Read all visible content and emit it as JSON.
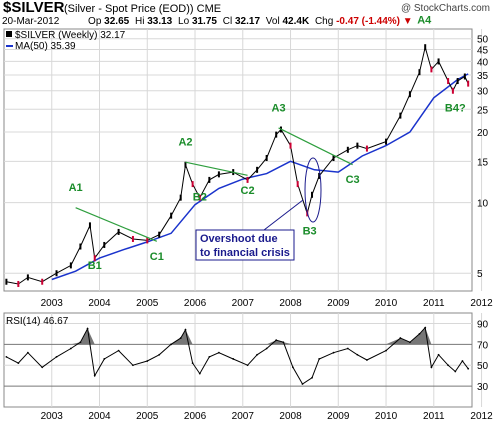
{
  "header": {
    "symbol": "$SILVER",
    "description": "(Silver - Spot Price (EOD))",
    "exchange": "CME",
    "credit": "@ StockCharts.com",
    "date": "20-Mar-2012",
    "open_label": "Op",
    "open_value": "32.65",
    "high_label": "Hi",
    "high_value": "33.13",
    "low_label": "Lo",
    "low_value": "31.75",
    "close_label": "Cl",
    "close_value": "32.17",
    "volume_label": "Vol",
    "volume_value": "42.4K",
    "change_label": "Chg",
    "change_value": "-0.47 (-1.44%)",
    "change_arrow": "▼"
  },
  "legend": {
    "price": "$SILVER (Weekly) 32.17",
    "ma": "MA(50) 35.39",
    "rsi": "RSI(14) 46.67"
  },
  "colors": {
    "price_bar": "#000000",
    "down_bar": "#cc0033",
    "ma_line": "#1a33cc",
    "trend_line": "#2e9e3e",
    "label_text": "#1a8c2a",
    "callout_text": "#1a1a8c",
    "rsi_fill": "#777777"
  },
  "annotations": [
    {
      "label": "A1",
      "year": 2004.0,
      "price": 11.2
    },
    {
      "label": "B1",
      "year": 2004.4,
      "price": 5.2
    },
    {
      "label": "C1",
      "year": 2005.7,
      "price": 5.7
    },
    {
      "label": "A2",
      "year": 2006.3,
      "price": 17.5
    },
    {
      "label": "B2",
      "year": 2006.6,
      "price": 10.2
    },
    {
      "label": "C2",
      "year": 2007.6,
      "price": 10.9
    },
    {
      "label": "A3",
      "year": 2008.25,
      "price": 24.5
    },
    {
      "label": "B3",
      "year": 2008.9,
      "price": 7.3
    },
    {
      "label": "C3",
      "year": 2009.8,
      "price": 12.1
    },
    {
      "label": "A4",
      "year": 2011.3,
      "price": 58.0
    },
    {
      "label": "B4?",
      "year": 2011.95,
      "price": 24.5
    }
  ],
  "callout": {
    "line1": "Overshoot due",
    "line2": "to financial crisis"
  },
  "chart_data": [
    {
      "type": "line",
      "title": "$SILVER (Weekly)",
      "y_scale": "log",
      "ylim": [
        4.2,
        55
      ],
      "xlim": [
        2002.5,
        2012.3
      ],
      "x_ticks": [
        "2003",
        "2004",
        "2005",
        "2006",
        "2007",
        "2008",
        "2009",
        "2010",
        "2011",
        "2012"
      ],
      "y_ticks": [
        5,
        10,
        15,
        20,
        25,
        30,
        35,
        40,
        45,
        50
      ],
      "grid": true,
      "series": [
        {
          "name": "$SILVER (Weekly)",
          "x": [
            2002.55,
            2002.8,
            2003.0,
            2003.3,
            2003.6,
            2003.9,
            2004.1,
            2004.3,
            2004.4,
            2004.6,
            2004.9,
            2005.2,
            2005.5,
            2005.75,
            2006.0,
            2006.2,
            2006.3,
            2006.45,
            2006.6,
            2006.8,
            2007.0,
            2007.3,
            2007.6,
            2007.8,
            2008.0,
            2008.2,
            2008.3,
            2008.5,
            2008.65,
            2008.85,
            2008.95,
            2009.1,
            2009.4,
            2009.7,
            2009.9,
            2010.1,
            2010.5,
            2010.8,
            2011.0,
            2011.2,
            2011.32,
            2011.45,
            2011.6,
            2011.8,
            2011.9,
            2012.0,
            2012.15,
            2012.22
          ],
          "values": [
            4.6,
            4.5,
            4.8,
            4.6,
            5.0,
            5.4,
            6.5,
            8.0,
            5.8,
            6.6,
            7.5,
            7.0,
            6.9,
            7.3,
            8.8,
            10.5,
            14.5,
            12.0,
            10.5,
            12.5,
            13.2,
            13.5,
            12.5,
            13.8,
            15.5,
            19.5,
            20.5,
            17.5,
            12.0,
            9.0,
            10.8,
            13.0,
            15.5,
            16.8,
            17.5,
            17.0,
            18.2,
            23.5,
            29.0,
            36.0,
            46.0,
            37.0,
            40.0,
            33.0,
            30.0,
            33.0,
            34.5,
            32.17
          ]
        },
        {
          "name": "MA(50)",
          "x": [
            2003.5,
            2004.0,
            2004.5,
            2005.0,
            2005.5,
            2006.0,
            2006.5,
            2007.0,
            2007.5,
            2008.0,
            2008.5,
            2009.0,
            2009.5,
            2010.0,
            2010.5,
            2011.0,
            2011.5,
            2012.0,
            2012.22
          ],
          "values": [
            4.7,
            5.1,
            5.8,
            6.3,
            6.8,
            7.4,
            9.8,
            11.5,
            12.6,
            13.3,
            15.0,
            13.8,
            13.5,
            15.8,
            17.5,
            20.0,
            28.0,
            33.5,
            35.39
          ]
        }
      ]
    },
    {
      "type": "line",
      "title": "RSI(14)",
      "ylim": [
        10,
        100
      ],
      "xlim": [
        2002.5,
        2012.3
      ],
      "y_ticks": [
        30,
        50,
        70,
        90
      ],
      "x_ticks": [
        "2003",
        "2004",
        "2005",
        "2006",
        "2007",
        "2008",
        "2009",
        "2010",
        "2011",
        "2012"
      ],
      "grid": true,
      "series": [
        {
          "name": "RSI(14)",
          "x": [
            2002.55,
            2002.8,
            2003.0,
            2003.3,
            2003.6,
            2003.9,
            2004.1,
            2004.25,
            2004.4,
            2004.6,
            2004.9,
            2005.2,
            2005.5,
            2005.75,
            2006.0,
            2006.2,
            2006.3,
            2006.45,
            2006.6,
            2006.8,
            2007.0,
            2007.3,
            2007.6,
            2007.8,
            2008.0,
            2008.2,
            2008.35,
            2008.55,
            2008.75,
            2008.95,
            2009.1,
            2009.4,
            2009.7,
            2009.9,
            2010.1,
            2010.5,
            2010.8,
            2011.0,
            2011.2,
            2011.32,
            2011.45,
            2011.6,
            2011.8,
            2011.95,
            2012.1,
            2012.22
          ],
          "values": [
            58,
            52,
            62,
            48,
            58,
            66,
            72,
            85,
            40,
            56,
            64,
            50,
            54,
            60,
            70,
            76,
            84,
            52,
            42,
            58,
            62,
            56,
            50,
            60,
            66,
            74,
            72,
            48,
            32,
            38,
            56,
            62,
            66,
            60,
            55,
            64,
            76,
            72,
            80,
            86,
            48,
            60,
            50,
            44,
            54,
            46.67
          ]
        }
      ]
    }
  ]
}
